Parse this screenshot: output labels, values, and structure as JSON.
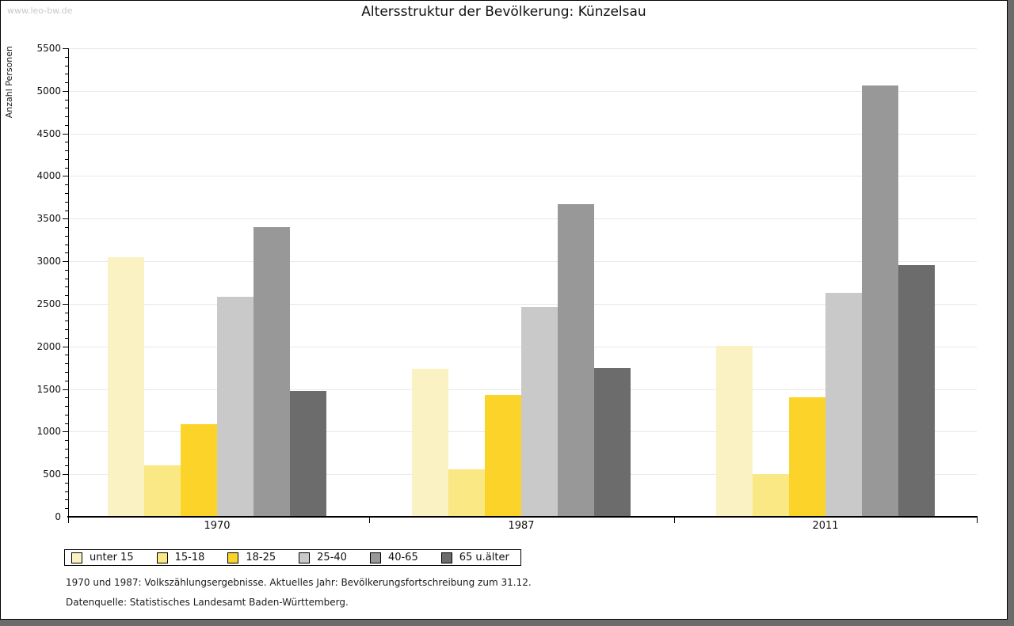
{
  "watermark": "www.leo-bw.de",
  "header": {
    "title": "Altersstruktur der Bevölkerung: Künzelsau"
  },
  "chart_data": {
    "type": "bar",
    "title": "Altersstruktur der Bevölkerung: Künzelsau",
    "xlabel": "",
    "ylabel": "Anzahl Personen",
    "ylim": [
      0,
      5500
    ],
    "ytick_step": 500,
    "yminor_step": 100,
    "grid": true,
    "legend_position": "bottom-left",
    "categories": [
      "1970",
      "1987",
      "2011"
    ],
    "series": [
      {
        "name": "unter 15",
        "color": "#FBF2C3",
        "values": [
          3050,
          1740,
          2010
        ]
      },
      {
        "name": "15-18",
        "color": "#FAE884",
        "values": [
          600,
          560,
          500
        ]
      },
      {
        "name": "18-25",
        "color": "#FCD429",
        "values": [
          1090,
          1430,
          1400
        ]
      },
      {
        "name": "25-40",
        "color": "#C9C9C9",
        "values": [
          2580,
          2460,
          2630
        ]
      },
      {
        "name": "40-65",
        "color": "#989898",
        "values": [
          3400,
          3670,
          5060
        ]
      },
      {
        "name": "65 u.älter",
        "color": "#6C6C6C",
        "values": [
          1480,
          1750,
          2950
        ]
      }
    ]
  },
  "footnotes": {
    "line1": "1970 und 1987: Volkszählungsergebnisse. Aktuelles Jahr: Bevölkerungsfortschreibung zum 31.12.",
    "line2": "Datenquelle: Statistisches Landesamt Baden-Württemberg."
  }
}
